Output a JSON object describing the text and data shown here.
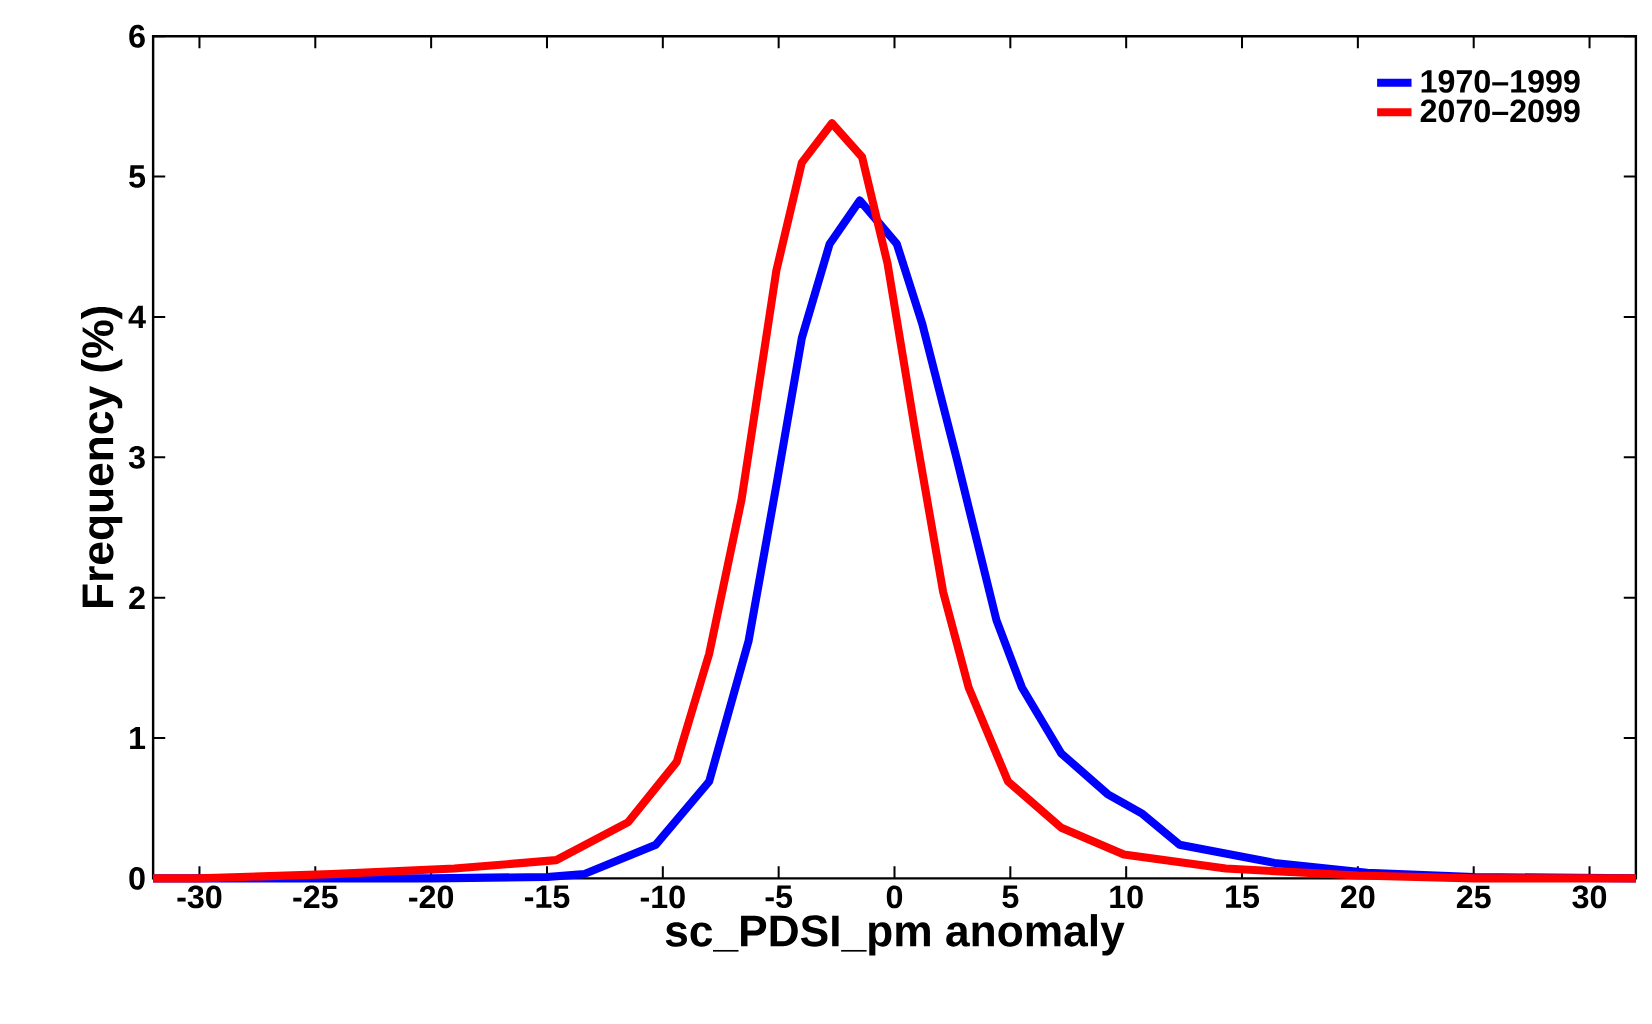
{
  "chart_data": {
    "type": "line",
    "xlabel": "sc_PDSI_pm anomaly",
    "ylabel": "Frequency (%)",
    "xlim": [
      -32,
      32
    ],
    "ylim": [
      0,
      6
    ],
    "xticks": [
      -30,
      -25,
      -20,
      -15,
      -10,
      -5,
      0,
      5,
      10,
      15,
      20,
      25,
      30
    ],
    "yticks": [
      0,
      1,
      2,
      3,
      4,
      5,
      6
    ],
    "legend": "top right",
    "grid": false,
    "marker": "none",
    "line_style": "solid",
    "series": [
      {
        "name": "1970–1999",
        "color": "#0000ff",
        "x": [
          -32,
          -25,
          -20,
          -15,
          -13.4,
          -10.3,
          -8.0,
          -6.3,
          -5.1,
          -4.0,
          -2.8,
          -1.5,
          0.1,
          1.2,
          2.7,
          4.4,
          5.5,
          7.2,
          9.2,
          10.7,
          12.3,
          16.4,
          20.4,
          25,
          32
        ],
        "values": [
          0,
          0,
          0,
          0.01,
          0.03,
          0.24,
          0.69,
          1.69,
          2.8,
          3.85,
          4.52,
          4.83,
          4.52,
          3.95,
          2.98,
          1.84,
          1.36,
          0.89,
          0.6,
          0.46,
          0.24,
          0.11,
          0.04,
          0.01,
          0
        ]
      },
      {
        "name": "2070–2099",
        "color": "#ff0000",
        "x": [
          -32,
          -30,
          -24.3,
          -19,
          -14.6,
          -11.5,
          -9.4,
          -8.0,
          -6.6,
          -5.1,
          -4.0,
          -2.7,
          -1.4,
          -0.3,
          0.9,
          2.1,
          3.2,
          4.9,
          7.2,
          9.9,
          14.3,
          20,
          25,
          32
        ],
        "values": [
          0,
          0,
          0.03,
          0.07,
          0.13,
          0.4,
          0.83,
          1.6,
          2.7,
          4.33,
          5.1,
          5.38,
          5.14,
          4.38,
          3.18,
          2.04,
          1.36,
          0.69,
          0.36,
          0.17,
          0.07,
          0.02,
          0,
          0
        ]
      }
    ]
  }
}
